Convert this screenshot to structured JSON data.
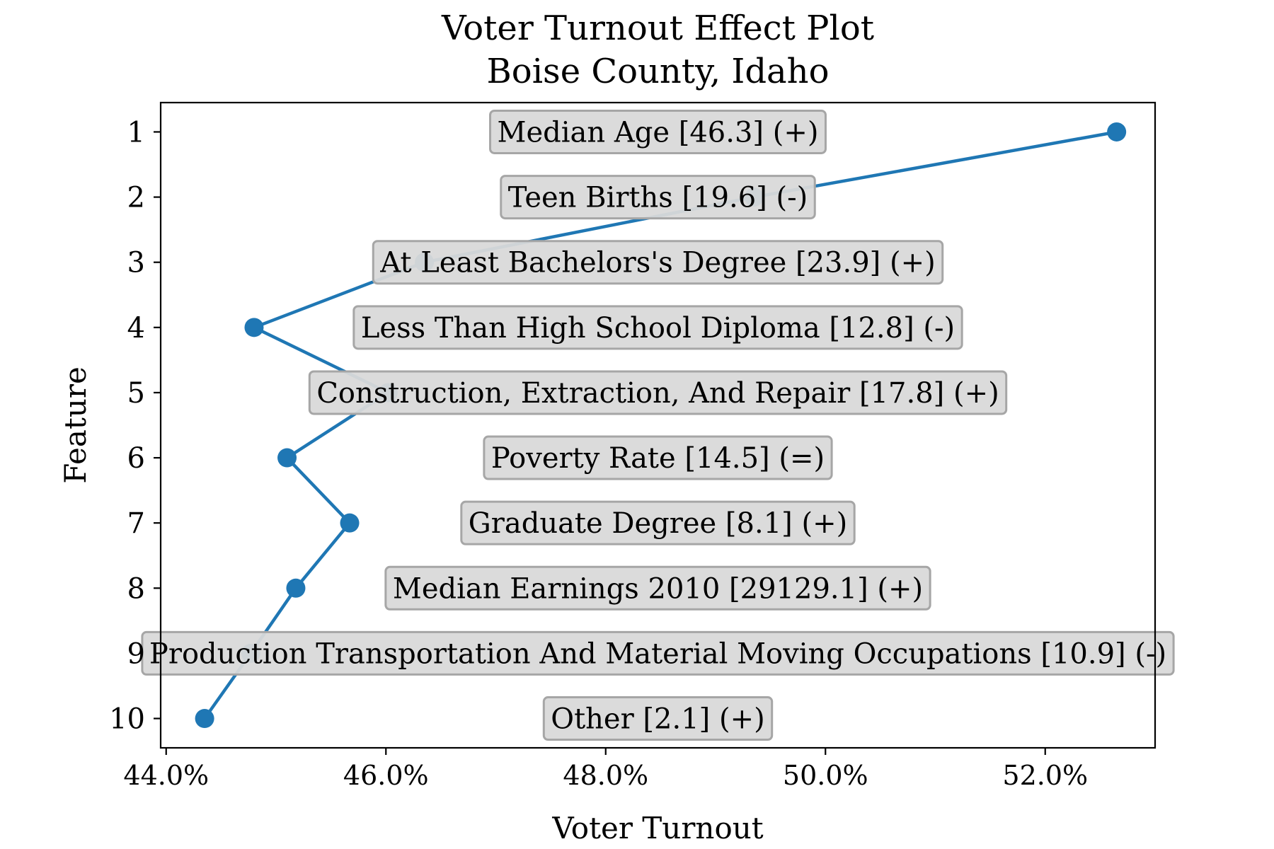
{
  "chart_data": {
    "type": "line",
    "title": [
      "Voter Turnout Effect Plot",
      "Boise County, Idaho"
    ],
    "xlabel": "Voter Turnout",
    "ylabel": "Feature",
    "xlim": [
      43.95,
      53.0
    ],
    "ylim": [
      10.45,
      0.55
    ],
    "x_ticks": [
      44,
      46,
      48,
      50,
      52
    ],
    "x_tick_labels": [
      "44.0%",
      "46.0%",
      "48.0%",
      "50.0%",
      "52.0%"
    ],
    "y_ticks": [
      1,
      2,
      3,
      4,
      5,
      6,
      7,
      8,
      9,
      10
    ],
    "y_tick_labels": [
      "1",
      "2",
      "3",
      "4",
      "5",
      "6",
      "7",
      "8",
      "9",
      "10"
    ],
    "grid": false,
    "series_color": "#1f77b4",
    "label_box_color": "#d9d9d9",
    "label_border_color": "#a6a6a6",
    "points": [
      {
        "feature": 1,
        "x": 52.65
      },
      {
        "feature": 2,
        "x": 49.35
      },
      {
        "feature": 3,
        "x": 46.35
      },
      {
        "feature": 4,
        "x": 44.8
      },
      {
        "feature": 5,
        "x": 46.02
      },
      {
        "feature": 6,
        "x": 45.1
      },
      {
        "feature": 7,
        "x": 45.67
      },
      {
        "feature": 8,
        "x": 45.18
      },
      {
        "feature": 9,
        "x": 44.77
      },
      {
        "feature": 10,
        "x": 44.35
      }
    ],
    "feature_labels": [
      "Median Age [46.3] (+)",
      "Teen Births [19.6] (-)",
      "At Least Bachelors's Degree [23.9] (+)",
      "Less Than High School Diploma [12.8] (-)",
      "Construction, Extraction, And Repair [17.8] (+)",
      "Poverty Rate [14.5] (=)",
      "Graduate Degree [8.1] (+)",
      "Median Earnings 2010 [29129.1] (+)",
      "Production Transportation And Material Moving Occupations [10.9] (-)",
      "Other [2.1] (+)"
    ]
  }
}
